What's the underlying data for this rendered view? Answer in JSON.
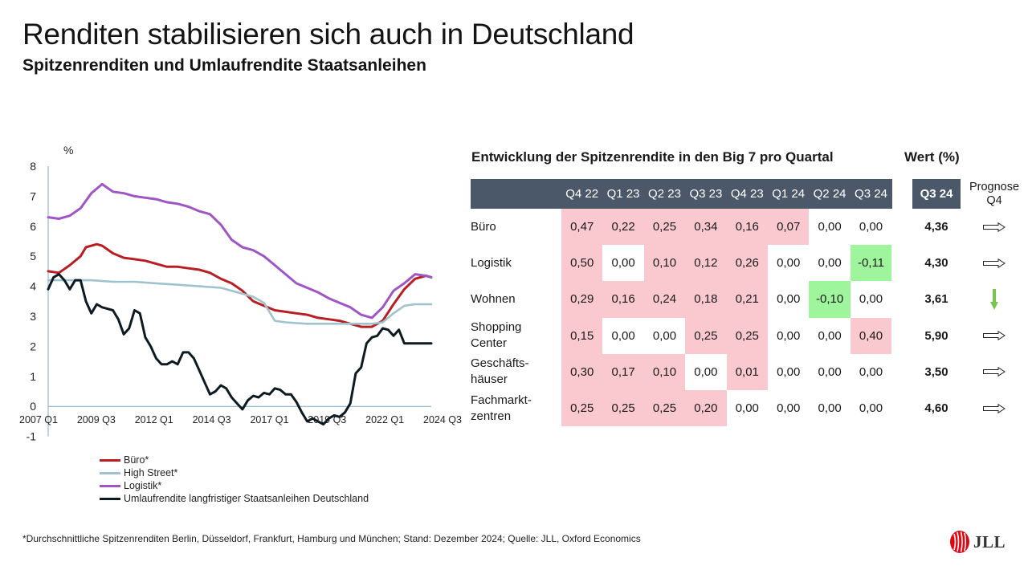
{
  "header": {
    "title": "Renditen stabilisieren sich auch in Deutschland",
    "subtitle": "Spitzenrenditen und Umlaufrendite Staatsanleihen"
  },
  "chart_data": {
    "type": "line",
    "ylabel": "%",
    "ylim": [
      -1,
      8
    ],
    "yticks": [
      "8",
      "7",
      "6",
      "5",
      "4",
      "3",
      "2",
      "1",
      "0",
      "-1"
    ],
    "xticks": [
      "2007 Q1",
      "2009 Q3",
      "2012 Q1",
      "2014 Q3",
      "2017 Q1",
      "2019 Q3",
      "2022 Q1",
      "2024 Q3"
    ],
    "x_start": 2007.0,
    "x_end": 2024.75,
    "legend_position": "bottom",
    "grid": false,
    "series": [
      {
        "name": "Büro*",
        "color": "#b81e24",
        "x": [
          2007.0,
          2007.5,
          2008.0,
          2008.5,
          2008.75,
          2009.25,
          2009.5,
          2010.0,
          2010.5,
          2011.0,
          2011.5,
          2012.0,
          2012.5,
          2013.0,
          2013.5,
          2014.0,
          2014.5,
          2015.0,
          2015.5,
          2016.0,
          2016.5,
          2017.0,
          2017.5,
          2018.0,
          2018.5,
          2019.0,
          2019.5,
          2020.0,
          2020.5,
          2021.0,
          2021.5,
          2022.0,
          2022.5,
          2023.0,
          2023.5,
          2024.0,
          2024.5,
          2024.75
        ],
        "y": [
          4.5,
          4.45,
          4.7,
          5.0,
          5.3,
          5.4,
          5.35,
          5.1,
          4.95,
          4.9,
          4.85,
          4.75,
          4.65,
          4.65,
          4.6,
          4.55,
          4.45,
          4.25,
          4.1,
          3.85,
          3.5,
          3.35,
          3.2,
          3.15,
          3.1,
          3.05,
          2.95,
          2.9,
          2.85,
          2.75,
          2.65,
          2.65,
          2.85,
          3.4,
          3.9,
          4.25,
          4.35,
          4.3
        ]
      },
      {
        "name": "High Street*",
        "color": "#9fc3cd",
        "x": [
          2007.0,
          2008.0,
          2009.0,
          2010.0,
          2011.0,
          2012.0,
          2013.0,
          2014.0,
          2015.0,
          2016.0,
          2016.5,
          2017.0,
          2017.5,
          2018.0,
          2019.0,
          2020.0,
          2021.0,
          2022.0,
          2022.5,
          2023.0,
          2023.5,
          2024.0,
          2024.75
        ],
        "y": [
          4.2,
          4.2,
          4.2,
          4.15,
          4.15,
          4.1,
          4.05,
          4.0,
          3.95,
          3.75,
          3.65,
          3.45,
          2.85,
          2.8,
          2.75,
          2.75,
          2.75,
          2.75,
          2.8,
          3.1,
          3.35,
          3.4,
          3.4
        ]
      },
      {
        "name": "Logistik*",
        "color": "#9f55c6",
        "x": [
          2007.0,
          2007.5,
          2008.0,
          2008.5,
          2009.0,
          2009.5,
          2010.0,
          2010.5,
          2011.0,
          2011.5,
          2012.0,
          2012.5,
          2013.0,
          2013.5,
          2014.0,
          2014.5,
          2015.0,
          2015.5,
          2016.0,
          2016.5,
          2017.0,
          2017.5,
          2018.0,
          2018.5,
          2019.0,
          2019.5,
          2020.0,
          2020.5,
          2021.0,
          2021.5,
          2022.0,
          2022.5,
          2023.0,
          2023.5,
          2024.0,
          2024.5,
          2024.75
        ],
        "y": [
          6.3,
          6.25,
          6.35,
          6.6,
          7.1,
          7.4,
          7.15,
          7.1,
          7.0,
          6.95,
          6.9,
          6.8,
          6.75,
          6.65,
          6.5,
          6.4,
          6.05,
          5.55,
          5.3,
          5.2,
          5.0,
          4.7,
          4.4,
          4.1,
          3.95,
          3.8,
          3.6,
          3.45,
          3.3,
          3.05,
          2.95,
          3.3,
          3.85,
          4.1,
          4.4,
          4.35,
          4.3
        ]
      },
      {
        "name": "Umlaufrendite langfristiger Staatsanleihen Deutschland",
        "color": "#0e1a22",
        "x": [
          2007.0,
          2007.25,
          2007.5,
          2007.75,
          2008.0,
          2008.25,
          2008.5,
          2008.75,
          2009.0,
          2009.25,
          2009.5,
          2010.0,
          2010.25,
          2010.5,
          2010.75,
          2011.0,
          2011.25,
          2011.5,
          2011.75,
          2012.0,
          2012.25,
          2012.5,
          2012.75,
          2013.0,
          2013.25,
          2013.5,
          2013.75,
          2014.0,
          2014.25,
          2014.5,
          2014.75,
          2015.0,
          2015.25,
          2015.5,
          2015.75,
          2016.0,
          2016.25,
          2016.5,
          2016.75,
          2017.0,
          2017.25,
          2017.5,
          2017.75,
          2018.0,
          2018.25,
          2018.5,
          2018.75,
          2019.0,
          2019.25,
          2019.5,
          2019.75,
          2020.0,
          2020.25,
          2020.5,
          2020.75,
          2021.0,
          2021.25,
          2021.5,
          2021.75,
          2022.0,
          2022.25,
          2022.5,
          2022.75,
          2023.0,
          2023.25,
          2023.5,
          2023.75,
          2024.0,
          2024.25,
          2024.5,
          2024.75
        ],
        "y": [
          3.9,
          4.3,
          4.4,
          4.2,
          3.9,
          4.2,
          4.2,
          3.5,
          3.1,
          3.4,
          3.3,
          3.2,
          2.9,
          2.4,
          2.6,
          3.2,
          3.1,
          2.3,
          2.0,
          1.6,
          1.4,
          1.4,
          1.5,
          1.4,
          1.8,
          1.8,
          1.6,
          1.2,
          0.8,
          0.4,
          0.5,
          0.7,
          0.6,
          0.3,
          0.1,
          -0.1,
          0.2,
          0.35,
          0.3,
          0.45,
          0.4,
          0.6,
          0.55,
          0.4,
          0.4,
          0.15,
          -0.2,
          -0.5,
          -0.4,
          -0.5,
          -0.6,
          -0.4,
          -0.3,
          -0.35,
          -0.2,
          0.1,
          1.1,
          1.3,
          2.1,
          2.3,
          2.35,
          2.6,
          2.55,
          2.35,
          2.55,
          2.1,
          2.1,
          2.1,
          2.1,
          2.1,
          2.1
        ]
      }
    ]
  },
  "table": {
    "heading": "Entwicklung der Spitzenrendite in den Big 7 pro Quartal",
    "value_heading": "Wert (%)",
    "quarters": [
      "Q4 22",
      "Q1 23",
      "Q2 23",
      "Q3 23",
      "Q4 23",
      "Q1 24",
      "Q2 24",
      "Q3 24"
    ],
    "value_col_header": "Q3 24",
    "prognose_line1": "Prognose",
    "prognose_line2": "Q4",
    "colors": {
      "header_bg": "#4a586a",
      "positive": "#f9c9cf",
      "negative": "#9ff59c",
      "down_arrow": "#7cc34d"
    },
    "rows": [
      {
        "line1": "Büro",
        "line2": "",
        "values": [
          "0,47",
          "0,22",
          "0,25",
          "0,34",
          "0,16",
          "0,07",
          "0,00",
          "0,00"
        ],
        "shade": [
          "pos",
          "pos",
          "pos",
          "pos",
          "pos",
          "pos",
          "",
          ""
        ],
        "value": "4,36",
        "forecast": "right-arrow-icon"
      },
      {
        "line1": "Logistik",
        "line2": "",
        "values": [
          "0,50",
          "0,00",
          "0,10",
          "0,12",
          "0,26",
          "0,00",
          "0,00",
          "-0,11"
        ],
        "shade": [
          "pos",
          "",
          "pos",
          "pos",
          "pos",
          "",
          "",
          "neg"
        ],
        "value": "4,30",
        "forecast": "right-arrow-icon"
      },
      {
        "line1": "Wohnen",
        "line2": "",
        "values": [
          "0,29",
          "0,16",
          "0,24",
          "0,18",
          "0,21",
          "0,00",
          "-0,10",
          "0,00"
        ],
        "shade": [
          "pos",
          "pos",
          "pos",
          "pos",
          "pos",
          "",
          "neg",
          ""
        ],
        "value": "3,61",
        "forecast": "down-arrow-icon"
      },
      {
        "line1": "Shopping",
        "line2": "Center",
        "values": [
          "0,15",
          "0,00",
          "0,00",
          "0,25",
          "0,25",
          "0,00",
          "0,00",
          "0,40"
        ],
        "shade": [
          "pos",
          "",
          "",
          "pos",
          "pos",
          "",
          "",
          "pos"
        ],
        "value": "5,90",
        "forecast": "right-arrow-icon"
      },
      {
        "line1": "Geschäfts-",
        "line2": "häuser",
        "values": [
          "0,30",
          "0,17",
          "0,10",
          "0,00",
          "0,01",
          "0,00",
          "0,00",
          "0,00"
        ],
        "shade": [
          "pos",
          "pos",
          "pos",
          "",
          "pos",
          "",
          "",
          ""
        ],
        "value": "3,50",
        "forecast": "right-arrow-icon"
      },
      {
        "line1": "Fachmarkt-",
        "line2": "zentren",
        "values": [
          "0,25",
          "0,25",
          "0,25",
          "0,20",
          "0,00",
          "0,00",
          "0,00",
          "0,00"
        ],
        "shade": [
          "pos",
          "pos",
          "pos",
          "pos",
          "",
          "",
          "",
          ""
        ],
        "value": "4,60",
        "forecast": "right-arrow-icon"
      }
    ]
  },
  "footnote": "*Durchschnittliche Spitzenrenditen Berlin, Düsseldorf, Frankfurt, Hamburg und München; Stand: Dezember 2024; Quelle: JLL, Oxford Economics",
  "logo": {
    "text": "JLL",
    "icon": "jll-logo-icon",
    "color": "#e30613"
  }
}
